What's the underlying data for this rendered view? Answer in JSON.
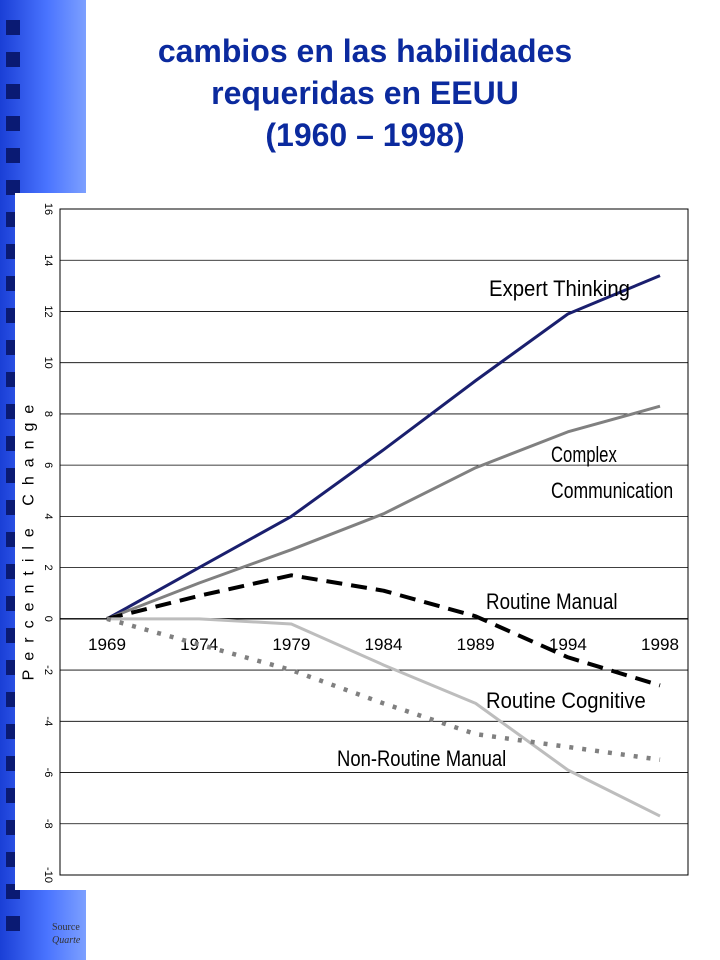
{
  "slide": {
    "title_lines": [
      "cambios en las habilidades",
      "requeridas en EEUU",
      "(1960 – 1998)"
    ],
    "source_label": "Source",
    "source_italic": "Quarte"
  },
  "colors": {
    "background": "#ffffff",
    "sidebar": "#3a63f0",
    "title": "#0b2a9e",
    "grid": "#000000"
  },
  "chart_data": {
    "type": "line",
    "title": "",
    "xlabel": "",
    "ylabel": "Percentile Change",
    "x": [
      "1969",
      "1974",
      "1979",
      "1984",
      "1989",
      "1994",
      "1998"
    ],
    "ylim": [
      -10,
      16
    ],
    "yticks": [
      -10,
      -8,
      -6,
      -4,
      -2,
      0,
      2,
      4,
      6,
      8,
      10,
      12,
      14,
      16
    ],
    "grid": true,
    "legend": "none (direct labels on lines)",
    "series": [
      {
        "name": "Expert Thinking",
        "values": [
          0,
          2.0,
          4.0,
          6.6,
          9.3,
          11.9,
          13.4
        ],
        "color": "#1a1f6e",
        "style": "solid"
      },
      {
        "name": "Complex Communication",
        "values": [
          0,
          1.4,
          2.7,
          4.1,
          5.9,
          7.3,
          8.3
        ],
        "color": "#808080",
        "style": "solid"
      },
      {
        "name": "Routine Manual",
        "values": [
          0,
          0.9,
          1.7,
          1.1,
          0.1,
          -1.5,
          -2.6
        ],
        "color": "#000000",
        "style": "dashed"
      },
      {
        "name": "Routine Cognitive",
        "values": [
          0,
          0,
          -0.2,
          -1.8,
          -3.3,
          -5.9,
          -7.7
        ],
        "color": "#bdbdbd",
        "style": "solid"
      },
      {
        "name": "Non-Routine Manual",
        "values": [
          0,
          -1.0,
          -2.0,
          -3.3,
          -4.5,
          -5.0,
          -5.5
        ],
        "color": "#808080",
        "style": "dotted"
      }
    ],
    "series_labels": [
      {
        "lines": [
          "Expert Thinking"
        ]
      },
      {
        "lines": [
          "Complex",
          "Communication"
        ]
      },
      {
        "lines": [
          "Routine Manual"
        ]
      },
      {
        "lines": [
          "Routine Cognitive"
        ]
      },
      {
        "lines": [
          "Non-Routine Manual"
        ]
      }
    ]
  }
}
